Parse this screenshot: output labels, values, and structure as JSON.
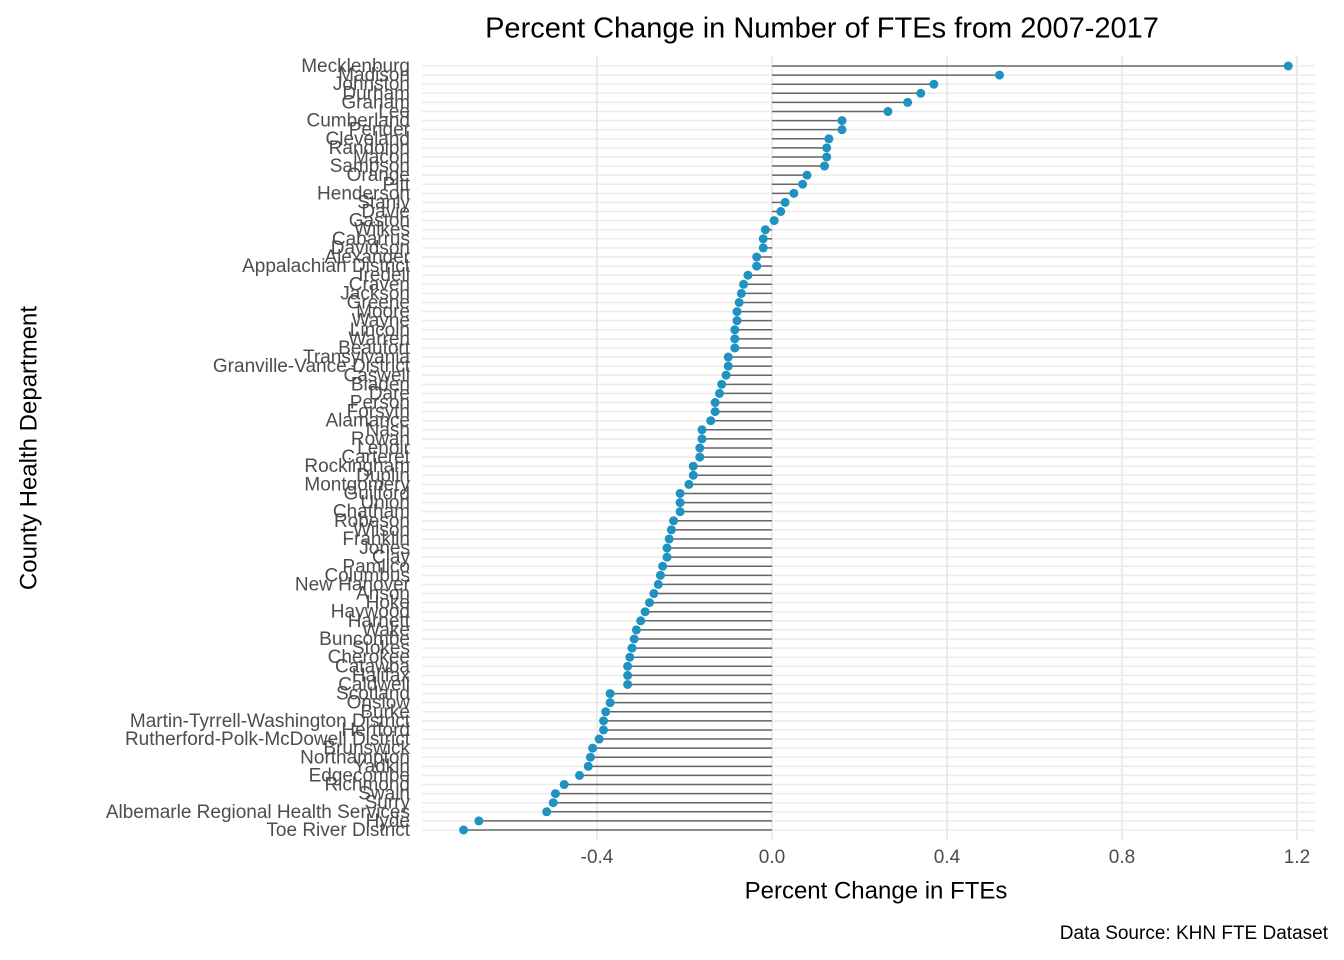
{
  "chart_data": {
    "type": "lollipop",
    "title": "Percent Change in Number of FTEs from 2007-2017",
    "x_label": "Percent Change in FTEs",
    "y_label": "County Health Department",
    "caption": "Data Source: KHN FTE Dataset",
    "color": "#1f92c1",
    "stem_color": "#666666",
    "grid": true,
    "xlim": [
      -0.8,
      1.24
    ],
    "xticks": [
      -0.4,
      {
        "value": 0,
        "label": "0.0"
      },
      0.4,
      0.8,
      1.2
    ],
    "categories": [
      "Mecklenburg",
      "Madison",
      "Johnston",
      "Durham",
      "Graham",
      "Lee",
      "Cumberland",
      "Pender",
      "Cleveland",
      "Randolph",
      "Macon",
      "Sampson",
      "Orange",
      "Pitt",
      "Henderson",
      "Stanly",
      "Davie",
      "Gaston",
      "Wilkes",
      "Cabarrus",
      "Davidson",
      "Alexander",
      "Appalachian District",
      "Iredell",
      "Craven",
      "Jackson",
      "Greene",
      "Moore",
      "Wayne",
      "Lincoln",
      "Warren",
      "Beaufort",
      "Transylvania",
      "Granville-Vance District",
      "Caswell",
      "Bladen",
      "Dare",
      "Person",
      "Forsyth",
      "Alamance",
      "Nash",
      "Rowan",
      "Lenoir",
      "Carteret",
      "Rockingham",
      "Duplin",
      "Montgomery",
      "Guilford",
      "Union",
      "Chatham",
      "Robeson",
      "Wilson",
      "Franklin",
      "Jones",
      "Clay",
      "Pamlico",
      "Columbus",
      "New Hanover",
      "Anson",
      "Hoke",
      "Haywood",
      "Harnett",
      "Wake",
      "Buncombe",
      "Stokes",
      "Cherokee",
      "Catawba",
      "Halifax",
      "Caldwell",
      "Scotland",
      "Onslow",
      "Burke",
      "Martin-Tyrrell-Washington District",
      "Hertford",
      "Rutherford-Polk-McDowell District",
      "Brunswick",
      "Northampton",
      "Yadkin",
      "Edgecombe",
      "Richmond",
      "Swain",
      "Surry",
      "Albemarle Regional Health Services",
      "Hyde",
      "Toe River District"
    ],
    "values": [
      1.18,
      0.52,
      0.37,
      0.34,
      0.31,
      0.265,
      0.16,
      0.16,
      0.13,
      0.125,
      0.125,
      0.12,
      0.08,
      0.07,
      0.05,
      0.03,
      0.02,
      0.005,
      -0.015,
      -0.02,
      -0.02,
      -0.035,
      -0.035,
      -0.055,
      -0.065,
      -0.07,
      -0.075,
      -0.08,
      -0.08,
      -0.085,
      -0.085,
      -0.085,
      -0.1,
      -0.1,
      -0.105,
      -0.115,
      -0.12,
      -0.13,
      -0.13,
      -0.14,
      -0.16,
      -0.16,
      -0.165,
      -0.165,
      -0.18,
      -0.18,
      -0.19,
      -0.21,
      -0.21,
      -0.21,
      -0.225,
      -0.23,
      -0.235,
      -0.24,
      -0.24,
      -0.25,
      -0.255,
      -0.26,
      -0.27,
      -0.28,
      -0.29,
      -0.3,
      -0.31,
      -0.315,
      -0.32,
      -0.325,
      -0.33,
      -0.33,
      -0.33,
      -0.37,
      -0.37,
      -0.38,
      -0.385,
      -0.385,
      -0.395,
      -0.41,
      -0.415,
      -0.42,
      -0.44,
      -0.475,
      -0.495,
      -0.5,
      -0.515,
      -0.67,
      -0.705
    ]
  }
}
